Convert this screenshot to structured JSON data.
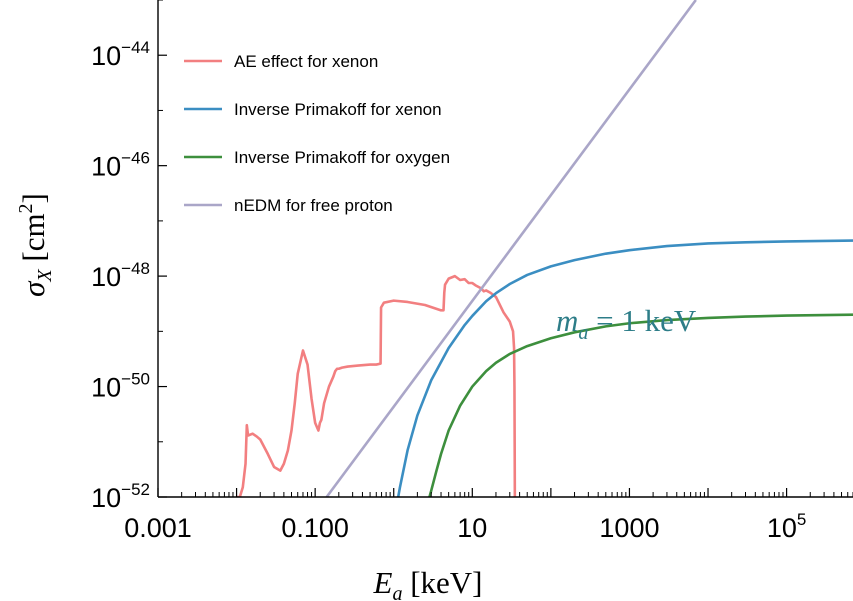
{
  "chart_data": {
    "type": "line",
    "xlabel": {
      "main": "E",
      "sub": "a",
      "unit": " [keV]"
    },
    "ylabel": {
      "main": "σ",
      "sub": "X",
      "unit_pre": " [cm",
      "unit_sup": "2",
      "unit_post": "]"
    },
    "x_scale": "log",
    "y_scale": "log",
    "xlim": [
      0.001,
      700000
    ],
    "ylim": [
      1e-52,
      1e-43
    ],
    "x_ticks": [
      {
        "value": 0.001,
        "base": "0.001",
        "sup": ""
      },
      {
        "value": 0.1,
        "base": "0.100",
        "sup": ""
      },
      {
        "value": 10,
        "base": "10",
        "sup": ""
      },
      {
        "value": 1000,
        "base": "1000",
        "sup": ""
      },
      {
        "value": 100000,
        "base": "10",
        "sup": "5"
      }
    ],
    "y_ticks": [
      {
        "value": 1e-52,
        "base": "10",
        "sup": "−52"
      },
      {
        "value": 1e-50,
        "base": "10",
        "sup": "−50"
      },
      {
        "value": 1e-48,
        "base": "10",
        "sup": "−48"
      },
      {
        "value": 1e-46,
        "base": "10",
        "sup": "−46"
      },
      {
        "value": 1e-44,
        "base": "10",
        "sup": "−44"
      }
    ],
    "grid": false,
    "legend_position": "top-left",
    "annotation": {
      "lhs_main": "m",
      "lhs_sub": "a",
      "rhs": " = 1 keV",
      "x": 60,
      "y": 1.6e-49
    },
    "series": [
      {
        "name": "AE effect for xenon",
        "color": "#f27f80",
        "x": [
          0.01,
          0.011,
          0.012,
          0.013,
          0.0135,
          0.014,
          0.016,
          0.018,
          0.02,
          0.025,
          0.03,
          0.036,
          0.04,
          0.045,
          0.05,
          0.055,
          0.06,
          0.07,
          0.08,
          0.09,
          0.1,
          0.11,
          0.115,
          0.12,
          0.13,
          0.15,
          0.17,
          0.18,
          0.19,
          0.2,
          0.22,
          0.26,
          0.35,
          0.5,
          0.6,
          0.68,
          0.69,
          0.75,
          1.0,
          1.5,
          2.5,
          4.0,
          4.3,
          4.4,
          4.5,
          5.0,
          6.0,
          7.0,
          8.0,
          9.0,
          10.0,
          11.0,
          13.0,
          14.0,
          15.0,
          17.0,
          20.0,
          25.0,
          30.0,
          33.0,
          34.0,
          34.4,
          34.6,
          34.8,
          35.0
        ],
        "y": [
          1e-52,
          1e-52,
          1.5e-52,
          4e-52,
          2e-51,
          1.3e-51,
          1.4e-51,
          1.25e-51,
          1.1e-51,
          6e-52,
          3.5e-52,
          3e-52,
          4e-52,
          7e-52,
          1.6e-51,
          5e-51,
          1.7e-50,
          4.5e-50,
          2.5e-50,
          6e-51,
          2.2e-51,
          1.6e-51,
          2.2e-51,
          2.5e-51,
          5e-51,
          1e-50,
          1.5e-50,
          1.9e-50,
          2.1e-50,
          2.1e-50,
          2.2e-50,
          2.3e-50,
          2.4e-50,
          2.5e-50,
          2.5e-50,
          2.6e-50,
          2.7e-49,
          3.3e-49,
          3.6e-49,
          3.4e-49,
          3e-49,
          2.4e-49,
          2.4e-49,
          5e-49,
          7e-49,
          9e-49,
          1e-48,
          8.5e-49,
          8.8e-49,
          7.5e-49,
          7.5e-49,
          6.8e-49,
          6e-49,
          5.3e-49,
          5.5e-49,
          5e-49,
          4.2e-49,
          2.2e-49,
          1.5e-49,
          1e-49,
          5e-50,
          1e-50,
          1e-51,
          1e-52,
          1e-52
        ]
      },
      {
        "name": "Inverse Primakoff for xenon",
        "color": "#3b8ec2",
        "x": [
          1.14,
          1.2,
          1.5,
          2.0,
          3.0,
          5.0,
          8.0,
          10.0,
          15.0,
          20.0,
          30.0,
          50.0,
          100.0,
          200.0,
          500.0,
          1000.0,
          3000.0,
          10000.0,
          30000.0,
          100000.0,
          700000.0
        ],
        "y": [
          1e-52,
          1.5e-52,
          7e-52,
          3e-51,
          1.3e-50,
          5e-50,
          1.3e-49,
          1.9e-49,
          3.5e-49,
          4.9e-49,
          7.2e-49,
          1.05e-48,
          1.5e-48,
          1.95e-48,
          2.55e-48,
          2.95e-48,
          3.5e-48,
          3.9e-48,
          4.1e-48,
          4.25e-48,
          4.4e-48
        ]
      },
      {
        "name": "Inverse Primakoff for oxygen",
        "color": "#3d8f3d",
        "x": [
          2.85,
          3.0,
          3.5,
          4.0,
          5.0,
          7.0,
          10.0,
          15.0,
          20.0,
          30.0,
          50.0,
          100.0,
          200.0,
          500.0,
          1000.0,
          3000.0,
          10000.0,
          30000.0,
          100000.0,
          700000.0
        ],
        "y": [
          1e-52,
          1.3e-52,
          3e-52,
          6e-52,
          1.6e-51,
          4.5e-51,
          1e-50,
          1.9e-50,
          2.7e-50,
          3.9e-50,
          5.4e-50,
          7.5e-50,
          9.6e-50,
          1.23e-49,
          1.4e-49,
          1.6e-49,
          1.75e-49,
          1.85e-49,
          1.93e-49,
          2e-49
        ]
      },
      {
        "name": "nEDM for free proton",
        "color": "#aaa6c8",
        "x": [
          0.14,
          7000.0
        ],
        "y": [
          1e-52,
          1e-43
        ]
      }
    ]
  }
}
